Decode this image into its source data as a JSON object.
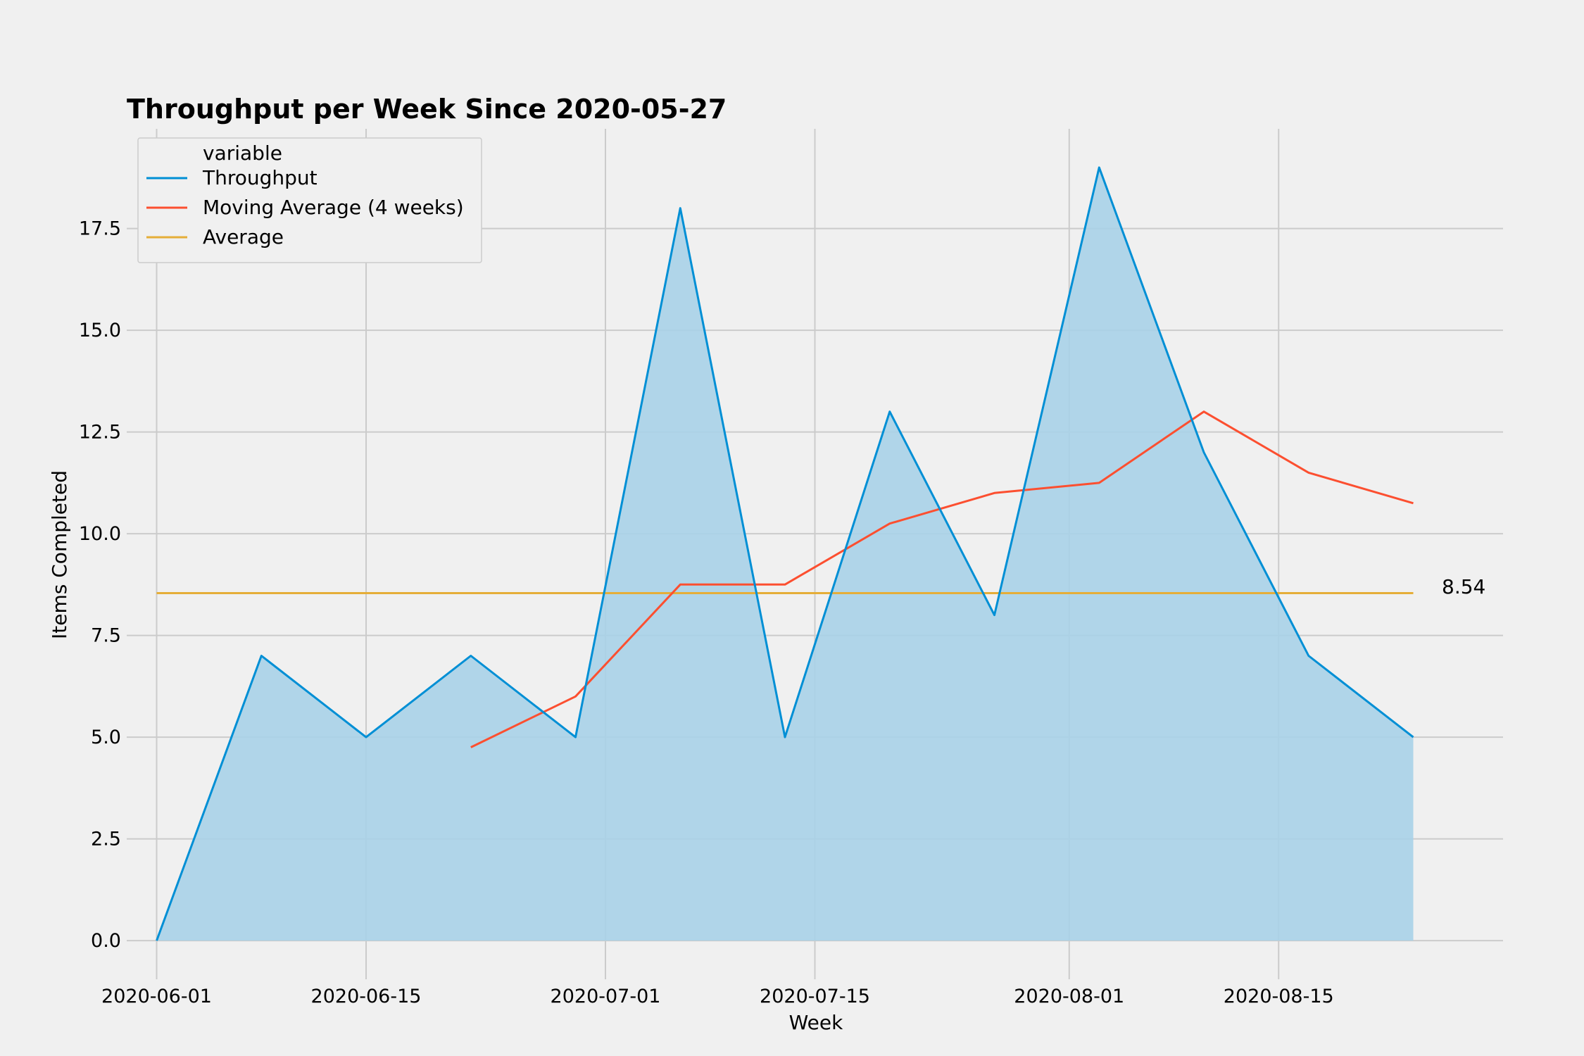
{
  "chart_data": {
    "type": "area",
    "title": "Throughput per Week Since 2020-05-27",
    "xlabel": "Week",
    "ylabel": "Items Completed",
    "x": [
      "2020-06-01",
      "2020-06-08",
      "2020-06-15",
      "2020-06-22",
      "2020-06-29",
      "2020-07-06",
      "2020-07-13",
      "2020-07-20",
      "2020-07-27",
      "2020-08-03",
      "2020-08-10",
      "2020-08-17",
      "2020-08-24"
    ],
    "series": [
      {
        "name": "Throughput",
        "kind": "area",
        "color": "#008fd5",
        "values": [
          0,
          7,
          5,
          7,
          5,
          18,
          5,
          13,
          8,
          19,
          12,
          7,
          5
        ]
      },
      {
        "name": "Moving Average (4 weeks)",
        "kind": "line",
        "color": "#fc4f30",
        "values": [
          null,
          null,
          null,
          4.75,
          6,
          8.75,
          8.75,
          10.25,
          11,
          11.25,
          13,
          11.5,
          10.75
        ]
      },
      {
        "name": "Average",
        "kind": "line",
        "color": "#e5ae38",
        "values": [
          8.54,
          8.54,
          8.54,
          8.54,
          8.54,
          8.54,
          8.54,
          8.54,
          8.54,
          8.54,
          8.54,
          8.54,
          8.54
        ]
      }
    ],
    "area_fill": "#a8d2e8",
    "average_annotation": "8.54",
    "x_ticks": [
      "2020-06-01",
      "2020-06-15",
      "2020-07-01",
      "2020-07-15",
      "2020-08-01",
      "2020-08-15"
    ],
    "y_ticks": [
      "0.0",
      "2.5",
      "5.0",
      "7.5",
      "10.0",
      "12.5",
      "15.0",
      "17.5"
    ],
    "x_range": [
      "2020-05-30",
      "2020-08-30"
    ],
    "ylim": [
      -0.95,
      19.95
    ],
    "grid": true,
    "legend_title": "variable",
    "legend_position": "upper-left"
  }
}
